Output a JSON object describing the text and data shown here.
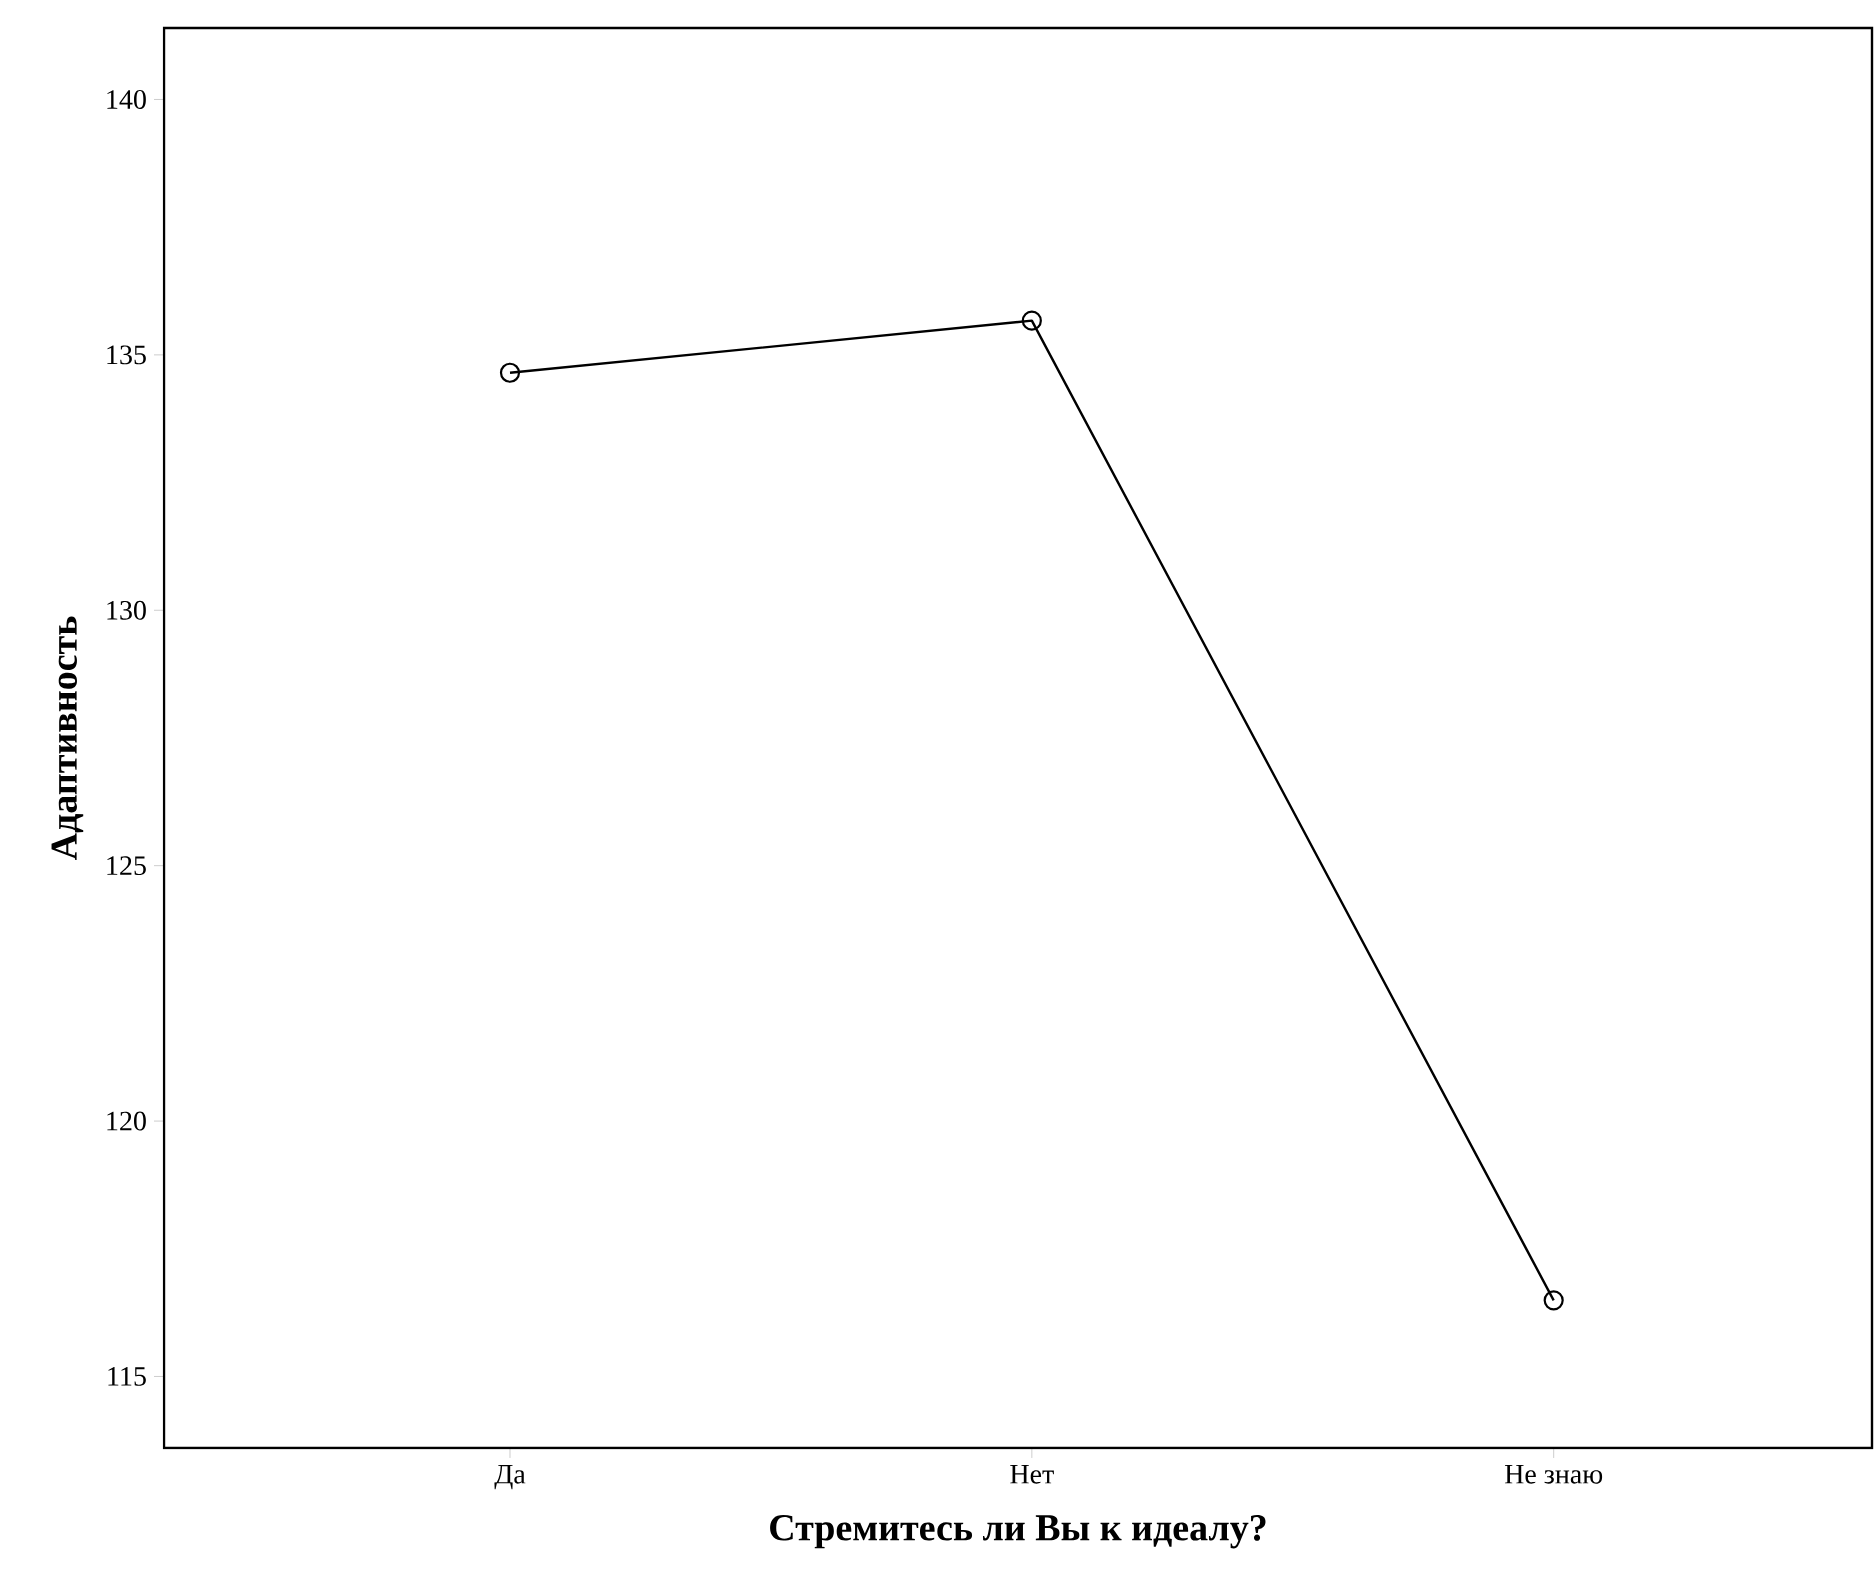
{
  "chart_data": {
    "type": "line",
    "xlabel": "Стремитесь ли Вы к идеалу?",
    "ylabel": "Адаптивность",
    "categories": [
      "Да",
      "Нет",
      "Не знаю"
    ],
    "values": [
      134.65,
      135.67,
      116.49
    ],
    "color": "#000000",
    "marker": "circle",
    "line_style": "solid",
    "ylim": [
      113.6,
      141.4
    ],
    "yticks": [
      115,
      120,
      125,
      130,
      135,
      140
    ]
  }
}
